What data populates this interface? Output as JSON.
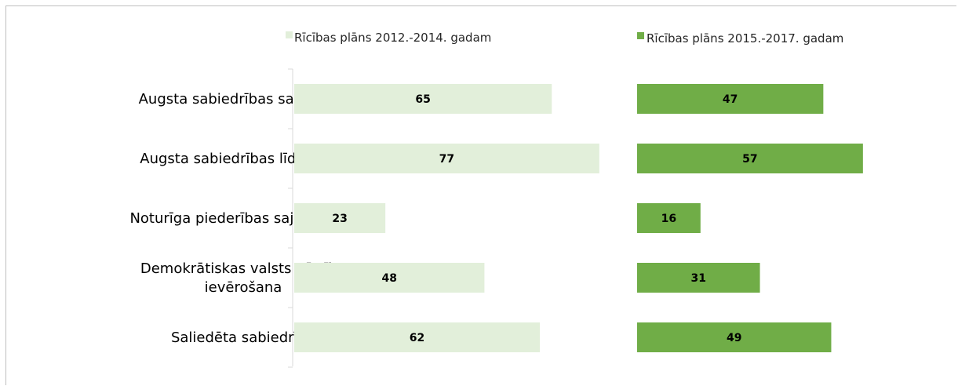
{
  "chart_data": {
    "type": "bar",
    "orientation": "horizontal",
    "categories": [
      [
        "Augsta sabiedrības sadarbība"
      ],
      [
        "Augsta sabiedrības līdzdalība"
      ],
      [
        "Noturīga piederības sajūta Rīgai"
      ],
      [
        "Demokrātiskas valsts vērtību",
        "ievērošana"
      ],
      [
        "Saliedēta sabiedrība"
      ]
    ],
    "series": [
      {
        "name": "Rīcības plāns 2012.-2014. gadam",
        "values": [
          65,
          77,
          23,
          48,
          62
        ],
        "color": "#e2efda"
      },
      {
        "name": "Rīcības plāns 2015.-2017. gadam",
        "values": [
          47,
          57,
          16,
          31,
          49
        ],
        "color": "#70ad47"
      }
    ],
    "legend_position": "top",
    "grid": false,
    "data_labels": true,
    "xlabel": "",
    "ylabel": ""
  }
}
